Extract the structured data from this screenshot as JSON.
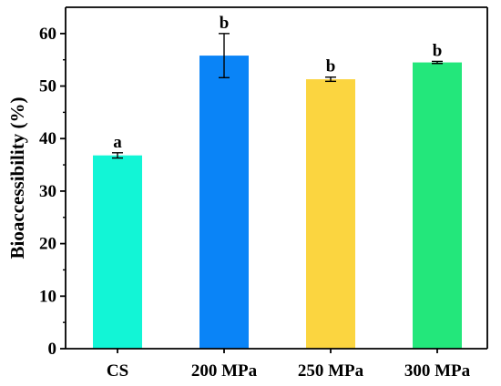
{
  "chart_data": {
    "type": "bar",
    "title": "",
    "xlabel": "",
    "ylabel": "Bioaccessibility (%)",
    "ylim": [
      0,
      65
    ],
    "yticks": [
      0,
      10,
      20,
      30,
      40,
      50,
      60
    ],
    "grid": false,
    "categories": [
      "CS",
      "200 MPa",
      "250 MPa",
      "300 MPa"
    ],
    "values": [
      36.8,
      55.8,
      51.3,
      54.5
    ],
    "errors": [
      0.5,
      4.2,
      0.4,
      0.2
    ],
    "significance": [
      "a",
      "b",
      "b",
      "b"
    ],
    "colors": [
      "#12f5d6",
      "#0a84f7",
      "#fbd540",
      "#23e77b"
    ]
  }
}
